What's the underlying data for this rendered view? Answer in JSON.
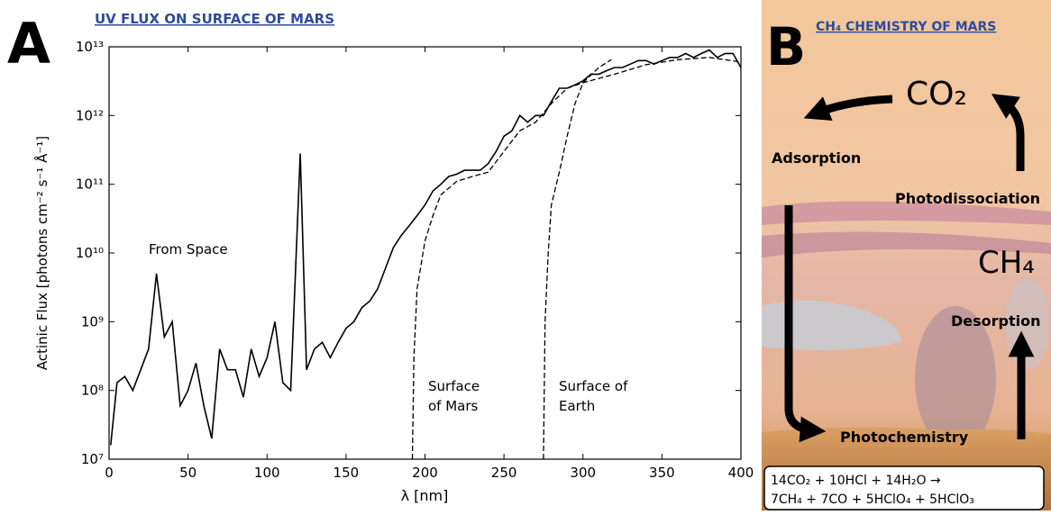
{
  "chart_data": {
    "type": "line",
    "panel_letter": "A",
    "title": "UV FLUX ON SURFACE OF MARS",
    "x_label": "λ [nm]",
    "y_label": "Actinic Flux [photons cm⁻² s⁻¹ Å⁻¹]",
    "xlim": [
      0,
      400
    ],
    "xticks": [
      0,
      50,
      100,
      150,
      200,
      250,
      300,
      350,
      400
    ],
    "ylim": [
      10000000.0,
      10000000000000.0
    ],
    "log_y": true,
    "grid": false,
    "yticks": [
      {
        "value": 10000000.0,
        "label": "10⁷"
      },
      {
        "value": 100000000.0,
        "label": "10⁸"
      },
      {
        "value": 1000000000.0,
        "label": "10⁹"
      },
      {
        "value": 10000000000.0,
        "label": "10¹⁰"
      },
      {
        "value": 100000000000.0,
        "label": "10¹¹"
      },
      {
        "value": 1000000000000.0,
        "label": "10¹²"
      },
      {
        "value": 10000000000000.0,
        "label": "10¹³"
      }
    ],
    "series": [
      {
        "label_lines": [
          "From Space"
        ],
        "color": "#000000",
        "dashed": false,
        "x": [
          1,
          5,
          10,
          15,
          20,
          25,
          30,
          35,
          40,
          45,
          50,
          55,
          60,
          65,
          70,
          75,
          80,
          85,
          90,
          95,
          100,
          105,
          110,
          115,
          121,
          125,
          130,
          135,
          140,
          145,
          150,
          155,
          160,
          165,
          170,
          175,
          180,
          185,
          190,
          195,
          200,
          205,
          210,
          215,
          220,
          225,
          230,
          235,
          240,
          245,
          250,
          255,
          260,
          265,
          270,
          275,
          280,
          285,
          290,
          295,
          300,
          305,
          310,
          315,
          320,
          325,
          330,
          335,
          340,
          345,
          350,
          355,
          360,
          365,
          370,
          375,
          380,
          385,
          390,
          395,
          400
        ],
        "values": [
          16000000.0,
          130000000.0,
          160000000.0,
          100000000.0,
          200000000.0,
          400000000.0,
          5000000000.0,
          600000000.0,
          1000000000.0,
          60000000.0,
          100000000.0,
          250000000.0,
          60000000.0,
          20000000.0,
          400000000.0,
          200000000.0,
          200000000.0,
          80000000.0,
          400000000.0,
          160000000.0,
          300000000.0,
          1000000000.0,
          130000000.0,
          100000000.0,
          280000000000.0,
          200000000.0,
          400000000.0,
          500000000.0,
          300000000.0,
          500000000.0,
          800000000.0,
          1000000000.0,
          1600000000.0,
          2000000000.0,
          3000000000.0,
          6000000000.0,
          12000000000.0,
          18000000000.0,
          25000000000.0,
          35000000000.0,
          50000000000.0,
          80000000000.0,
          100000000000.0,
          130000000000.0,
          140000000000.0,
          160000000000.0,
          160000000000.0,
          160000000000.0,
          200000000000.0,
          300000000000.0,
          500000000000.0,
          600000000000.0,
          1000000000000.0,
          800000000000.0,
          1000000000000.0,
          1000000000000.0,
          1600000000000.0,
          2500000000000.0,
          2500000000000.0,
          2800000000000.0,
          3200000000000.0,
          4000000000000.0,
          4000000000000.0,
          4500000000000.0,
          5000000000000.0,
          5000000000000.0,
          5600000000000.0,
          6300000000000.0,
          6300000000000.0,
          5600000000000.0,
          6300000000000.0,
          7000000000000.0,
          7000000000000.0,
          8000000000000.0,
          7000000000000.0,
          8000000000000.0,
          9000000000000.0,
          7000000000000.0,
          8000000000000.0,
          8000000000000.0,
          5000000000000.0
        ]
      },
      {
        "label_lines": [
          "Surface",
          "of Mars"
        ],
        "color": "#000000",
        "dashed": true,
        "x": [
          192,
          193,
          195,
          200,
          205,
          210,
          220,
          230,
          240,
          250,
          260,
          270,
          280,
          290,
          300,
          320,
          340,
          360,
          380,
          400
        ],
        "values": [
          10000000.0,
          300000000.0,
          3000000000.0,
          15000000000.0,
          35000000000.0,
          70000000000.0,
          110000000000.0,
          130000000000.0,
          150000000000.0,
          300000000000.0,
          600000000000.0,
          800000000000.0,
          1500000000000.0,
          2500000000000.0,
          3000000000000.0,
          4000000000000.0,
          5500000000000.0,
          6500000000000.0,
          7000000000000.0,
          6000000000000.0
        ]
      },
      {
        "label_lines": [
          "Surface of",
          "Earth"
        ],
        "color": "#000000",
        "dashed": true,
        "x": [
          275,
          276,
          278,
          280,
          285,
          290,
          295,
          300,
          310,
          318
        ],
        "values": [
          10000000.0,
          1000000000.0,
          10000000000.0,
          50000000000.0,
          150000000000.0,
          500000000000.0,
          1500000000000.0,
          3000000000000.0,
          5000000000000.0,
          6500000000000.0
        ]
      }
    ]
  },
  "panel_b": {
    "panel_letter": "B",
    "title": "CH₄ CHEMISTRY OF MARS",
    "co2": "CO₂",
    "ch4": "CH₄",
    "processes": {
      "adsorption": "Adsorption",
      "photodissociation": "Photodissociation",
      "desorption": "Desorption",
      "photochemistry": "Photochemistry"
    },
    "equation": [
      "14CO₂ + 10HCl + 14H₂O →",
      "7CH₄ + 7CO + 5HClO₄ + 5HClO₃"
    ]
  }
}
